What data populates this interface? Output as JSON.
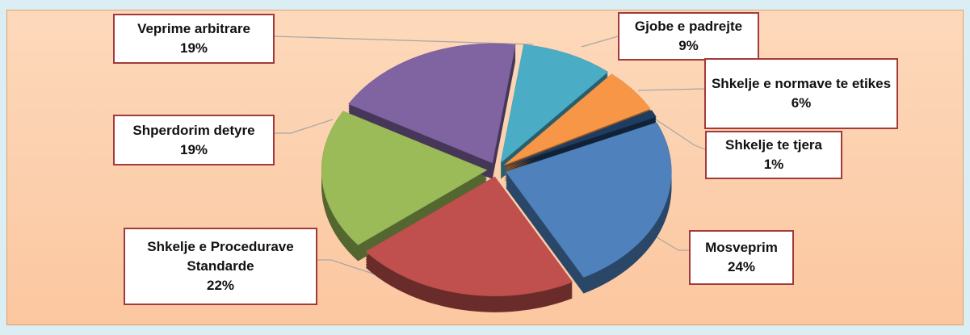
{
  "chart_data": {
    "type": "pie",
    "categories": [
      "Gjobe e padrejte",
      "Shkelje e normave te etikes",
      "Shkelje te tjera",
      "Mosveprim",
      "Shkelje e Procedurave Standarde",
      "Shperdorim detyre",
      "Veprime arbitrare"
    ],
    "values": [
      9,
      6,
      1,
      24,
      22,
      19,
      19
    ],
    "value_labels": [
      "9%",
      "6%",
      "1%",
      "24%",
      "22%",
      "19%",
      "19%"
    ],
    "colors": [
      "#4bacc6",
      "#f79646",
      "#1f3d63",
      "#4f81bd",
      "#c0504d",
      "#9bbb59",
      "#8064a2"
    ]
  }
}
